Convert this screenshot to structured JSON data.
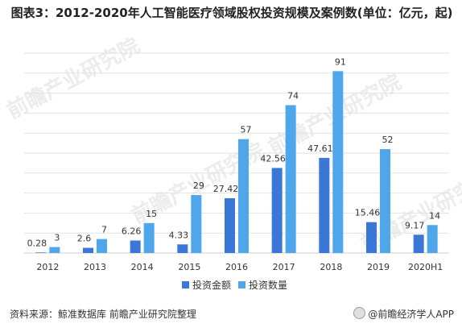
{
  "title": "图表3：2012-2020年人工智能医疗领域股权投资规模及案例数(单位：亿元，起)",
  "source": "资料来源：鲸准数据库 前瞻产业研究院整理",
  "brand": "@前瞻经济学人APP",
  "watermark": "前瞻产业研究院",
  "colors": {
    "amount": "#3a77d6",
    "count": "#4fa6ea",
    "grid": "#e2e2e2",
    "text": "#333333"
  },
  "chart_data": {
    "type": "bar",
    "categories": [
      "2012",
      "2013",
      "2014",
      "2015",
      "2016",
      "2017",
      "2018",
      "2019",
      "2020H1"
    ],
    "series": [
      {
        "name": "投资金额",
        "values": [
          0.28,
          2.6,
          6.26,
          4.33,
          27.42,
          42.56,
          47.61,
          15.46,
          9.17
        ]
      },
      {
        "name": "投资数量",
        "values": [
          3,
          7,
          15,
          29,
          57,
          74,
          91,
          52,
          14
        ]
      }
    ],
    "ylim": [
      0,
      100
    ],
    "grid": true,
    "legend_position": "bottom"
  }
}
